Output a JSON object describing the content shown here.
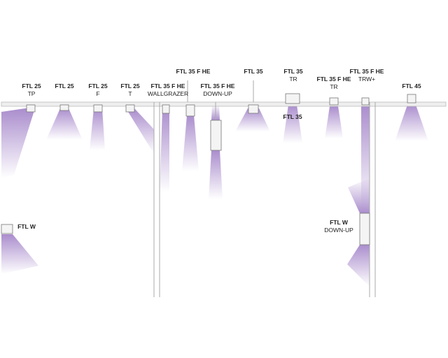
{
  "labels": [
    {
      "name": "FTL 25",
      "sub": "TP"
    },
    {
      "name": "FTL 25"
    },
    {
      "name": "FTL 25",
      "sub": "F"
    },
    {
      "name": "FTL 25",
      "sub": "T"
    },
    {
      "name": "FTL 35 F HE",
      "sub": "WALLGRAZER"
    },
    {
      "name": "FTL 35 F HE"
    },
    {
      "name": "FTL 35 F HE",
      "sub": "DOWN-UP"
    },
    {
      "name": "FTL 35"
    },
    {
      "name": "FTL 35",
      "sub": "TR"
    },
    {
      "name": "FTL 35"
    },
    {
      "name": "FTL 35 F HE",
      "sub": "TR"
    },
    {
      "name": "FTL 35 F HE",
      "sub": "TRW+"
    },
    {
      "name": "FTL 45"
    },
    {
      "name": "FTL W"
    },
    {
      "name": "FTL W",
      "sub": "DOWN-UP"
    }
  ]
}
